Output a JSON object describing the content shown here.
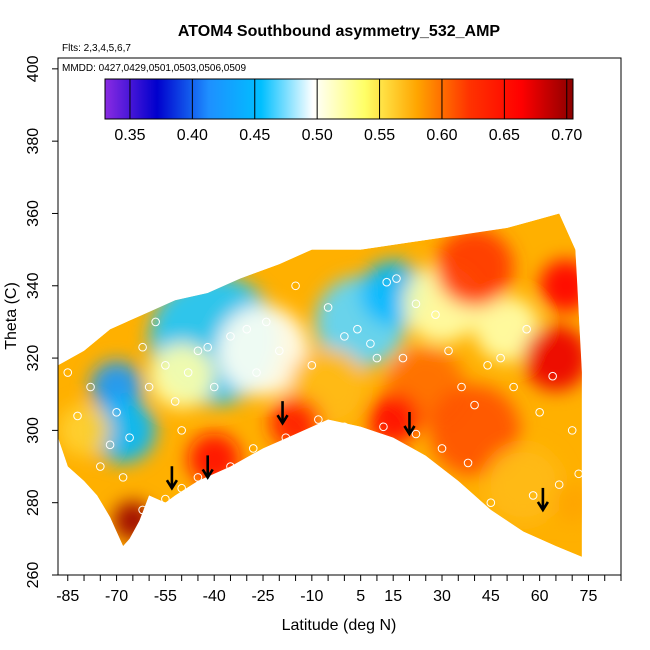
{
  "chart_data": {
    "type": "heatmap",
    "title": "ATOM4 Southbound asymmetry_532_AMP",
    "flights_label": "Flts: 2,3,4,5,6,7",
    "dates_label": "MMDD: 0427,0429,0501,0503,0506,0509",
    "xlabel": "Latitude (deg N)",
    "ylabel": "Theta (C)",
    "xlim": [
      -88,
      85
    ],
    "ylim": [
      260,
      403
    ],
    "xticks": [
      -85,
      -70,
      -55,
      -40,
      -25,
      -10,
      5,
      15,
      30,
      45,
      60,
      75
    ],
    "xtick_labels": [
      "-85",
      "-70",
      "-55",
      "-40",
      "-25",
      "-10",
      "5",
      "15",
      "30",
      "45",
      "60",
      "75"
    ],
    "yticks": [
      260,
      280,
      300,
      320,
      340,
      360,
      380,
      400
    ],
    "ytick_labels": [
      "260",
      "280",
      "300",
      "320",
      "340",
      "360",
      "380",
      "400"
    ],
    "colorbar": {
      "range": [
        0.33,
        0.705
      ],
      "ticks": [
        0.35,
        0.4,
        0.45,
        0.5,
        0.55,
        0.6,
        0.65,
        0.7
      ],
      "tick_labels": [
        "0.35",
        "0.40",
        "0.45",
        "0.50",
        "0.55",
        "0.60",
        "0.65",
        "0.70"
      ],
      "colors": [
        "#8a2be2",
        "#0000cd",
        "#1e90ff",
        "#00bfff",
        "#ffffff",
        "#ffff66",
        "#ffa500",
        "#ff3300",
        "#ff0000",
        "#8b0000"
      ]
    },
    "domain_upper_boundary": [
      [
        -88,
        318
      ],
      [
        -80,
        322
      ],
      [
        -72,
        328
      ],
      [
        -62,
        332
      ],
      [
        -52,
        336
      ],
      [
        -42,
        338
      ],
      [
        -32,
        342
      ],
      [
        -20,
        346
      ],
      [
        -10,
        350
      ],
      [
        5,
        350
      ],
      [
        20,
        352
      ],
      [
        35,
        354
      ],
      [
        50,
        356
      ],
      [
        58,
        358
      ],
      [
        66,
        360
      ],
      [
        71,
        350
      ],
      [
        73,
        316
      ],
      [
        73,
        265
      ]
    ],
    "domain_lower_boundary": [
      [
        73,
        265
      ],
      [
        65,
        268
      ],
      [
        55,
        272
      ],
      [
        45,
        278
      ],
      [
        35,
        286
      ],
      [
        25,
        293
      ],
      [
        15,
        298
      ],
      [
        5,
        301
      ],
      [
        -5,
        303
      ],
      [
        -15,
        299
      ],
      [
        -25,
        295
      ],
      [
        -35,
        290
      ],
      [
        -45,
        286
      ],
      [
        -52,
        282
      ],
      [
        -55,
        280
      ],
      [
        -60,
        282
      ],
      [
        -63,
        275
      ],
      [
        -66,
        270
      ],
      [
        -68,
        268
      ],
      [
        -72,
        276
      ],
      [
        -76,
        282
      ],
      [
        -80,
        286
      ],
      [
        -85,
        290
      ],
      [
        -88,
        298
      ]
    ],
    "field_blobs": [
      {
        "lat": -40,
        "theta": 325,
        "value": 0.46,
        "radius": 20
      },
      {
        "lat": -70,
        "theta": 312,
        "value": 0.42,
        "radius": 8
      },
      {
        "lat": -68,
        "theta": 300,
        "value": 0.45,
        "radius": 10
      },
      {
        "lat": -25,
        "theta": 322,
        "value": 0.5,
        "radius": 14
      },
      {
        "lat": 5,
        "theta": 330,
        "value": 0.47,
        "radius": 14
      },
      {
        "lat": 15,
        "theta": 338,
        "value": 0.45,
        "radius": 10
      },
      {
        "lat": 30,
        "theta": 335,
        "value": 0.52,
        "radius": 12
      },
      {
        "lat": 50,
        "theta": 328,
        "value": 0.52,
        "radius": 10
      },
      {
        "lat": -50,
        "theta": 315,
        "value": 0.52,
        "radius": 10
      },
      {
        "lat": -5,
        "theta": 312,
        "value": 0.57,
        "radius": 12
      },
      {
        "lat": 25,
        "theta": 312,
        "value": 0.6,
        "radius": 12
      },
      {
        "lat": 40,
        "theta": 300,
        "value": 0.61,
        "radius": 14
      },
      {
        "lat": 55,
        "theta": 285,
        "value": 0.57,
        "radius": 12
      },
      {
        "lat": 65,
        "theta": 320,
        "value": 0.67,
        "radius": 10
      },
      {
        "lat": 68,
        "theta": 340,
        "value": 0.66,
        "radius": 8
      },
      {
        "lat": -65,
        "theta": 275,
        "value": 0.7,
        "radius": 6
      },
      {
        "lat": -40,
        "theta": 292,
        "value": 0.65,
        "radius": 8
      },
      {
        "lat": -15,
        "theta": 302,
        "value": 0.64,
        "radius": 8
      },
      {
        "lat": 15,
        "theta": 303,
        "value": 0.65,
        "radius": 8
      },
      {
        "lat": 40,
        "theta": 345,
        "value": 0.62,
        "radius": 12
      },
      {
        "lat": -80,
        "theta": 300,
        "value": 0.56,
        "radius": 8
      },
      {
        "lat": 70,
        "theta": 280,
        "value": 0.58,
        "radius": 6
      }
    ],
    "observations": [
      {
        "lat": -62,
        "theta": 323
      },
      {
        "lat": -60,
        "theta": 312
      },
      {
        "lat": -58,
        "theta": 330
      },
      {
        "lat": -55,
        "theta": 318
      },
      {
        "lat": -52,
        "theta": 308
      },
      {
        "lat": -50,
        "theta": 300
      },
      {
        "lat": -48,
        "theta": 316
      },
      {
        "lat": -45,
        "theta": 322
      },
      {
        "lat": -42,
        "theta": 323
      },
      {
        "lat": -40,
        "theta": 312
      },
      {
        "lat": -35,
        "theta": 326
      },
      {
        "lat": -30,
        "theta": 328
      },
      {
        "lat": -27,
        "theta": 316
      },
      {
        "lat": -24,
        "theta": 330
      },
      {
        "lat": -20,
        "theta": 322
      },
      {
        "lat": -15,
        "theta": 340
      },
      {
        "lat": -10,
        "theta": 318
      },
      {
        "lat": -5,
        "theta": 334
      },
      {
        "lat": 0,
        "theta": 326
      },
      {
        "lat": 4,
        "theta": 328
      },
      {
        "lat": 8,
        "theta": 324
      },
      {
        "lat": 10,
        "theta": 320
      },
      {
        "lat": 13,
        "theta": 341
      },
      {
        "lat": 16,
        "theta": 342
      },
      {
        "lat": 18,
        "theta": 320
      },
      {
        "lat": 22,
        "theta": 335
      },
      {
        "lat": 28,
        "theta": 332
      },
      {
        "lat": 32,
        "theta": 322
      },
      {
        "lat": 36,
        "theta": 312
      },
      {
        "lat": 40,
        "theta": 307
      },
      {
        "lat": 44,
        "theta": 318
      },
      {
        "lat": 48,
        "theta": 320
      },
      {
        "lat": 52,
        "theta": 312
      },
      {
        "lat": 56,
        "theta": 328
      },
      {
        "lat": 60,
        "theta": 305
      },
      {
        "lat": 64,
        "theta": 315
      },
      {
        "lat": 70,
        "theta": 300
      },
      {
        "lat": 72,
        "theta": 288
      },
      {
        "lat": 66,
        "theta": 285
      },
      {
        "lat": 58,
        "theta": 282
      },
      {
        "lat": 45,
        "theta": 280
      },
      {
        "lat": 38,
        "theta": 291
      },
      {
        "lat": 30,
        "theta": 295
      },
      {
        "lat": 22,
        "theta": 299
      },
      {
        "lat": 12,
        "theta": 301
      },
      {
        "lat": 0,
        "theta": 301
      },
      {
        "lat": -8,
        "theta": 303
      },
      {
        "lat": -18,
        "theta": 298
      },
      {
        "lat": -28,
        "theta": 295
      },
      {
        "lat": -35,
        "theta": 290
      },
      {
        "lat": -45,
        "theta": 287
      },
      {
        "lat": -50,
        "theta": 284
      },
      {
        "lat": -55,
        "theta": 281
      },
      {
        "lat": -62,
        "theta": 278
      },
      {
        "lat": -75,
        "theta": 290
      },
      {
        "lat": -82,
        "theta": 304
      },
      {
        "lat": -85,
        "theta": 316
      },
      {
        "lat": -78,
        "theta": 312
      },
      {
        "lat": -70,
        "theta": 305
      },
      {
        "lat": -66,
        "theta": 298
      },
      {
        "lat": -72,
        "theta": 296
      },
      {
        "lat": -68,
        "theta": 287
      }
    ],
    "arrows": [
      {
        "lat": -53,
        "theta": 284
      },
      {
        "lat": -42,
        "theta": 287
      },
      {
        "lat": -19,
        "theta": 302
      },
      {
        "lat": 20,
        "theta": 299
      },
      {
        "lat": 61,
        "theta": 278
      }
    ]
  }
}
